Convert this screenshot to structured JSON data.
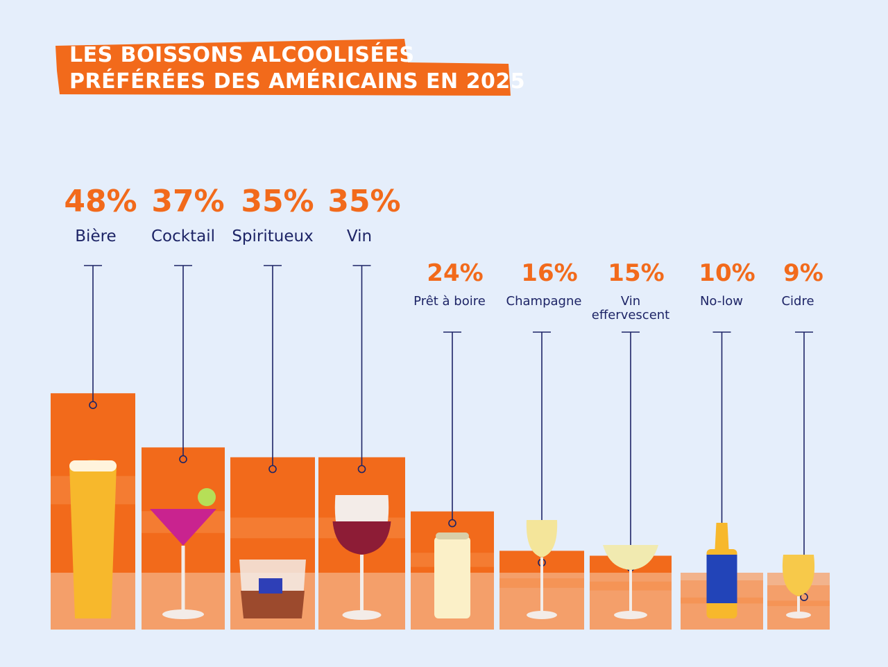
{
  "header": {
    "title_line1": "LES BOISSONS ALCOOLISÉES",
    "title_line2": "PRÉFÉRÉES DES AMÉRICAINS EN 2025"
  },
  "colors": {
    "background": "#e5eefb",
    "accent": "#f26a1b",
    "label": "#1d2466"
  },
  "chart_data": {
    "type": "bar",
    "title": "LES BOISSONS ALCOOLISÉES PRÉFÉRÉES DES AMÉRICAINS EN 2025",
    "unit": "%",
    "categories": [
      "Bière",
      "Cocktail",
      "Spiritueux",
      "Vin",
      "Prêt à boire",
      "Champagne",
      "Vin effervescent",
      "No-low",
      "Cidre"
    ],
    "values": [
      48,
      37,
      35,
      35,
      24,
      16,
      15,
      10,
      9
    ],
    "value_labels": [
      "48%",
      "37%",
      "35%",
      "35%",
      "24%",
      "16%",
      "15%",
      "10%",
      "9%"
    ],
    "icons": [
      "beer-glass-icon",
      "cocktail-glass-icon",
      "whiskey-tumbler-icon",
      "wine-glass-icon",
      "can-icon",
      "champagne-glass-icon",
      "coupe-glass-icon",
      "bottle-icon",
      "cider-glass-icon"
    ]
  }
}
